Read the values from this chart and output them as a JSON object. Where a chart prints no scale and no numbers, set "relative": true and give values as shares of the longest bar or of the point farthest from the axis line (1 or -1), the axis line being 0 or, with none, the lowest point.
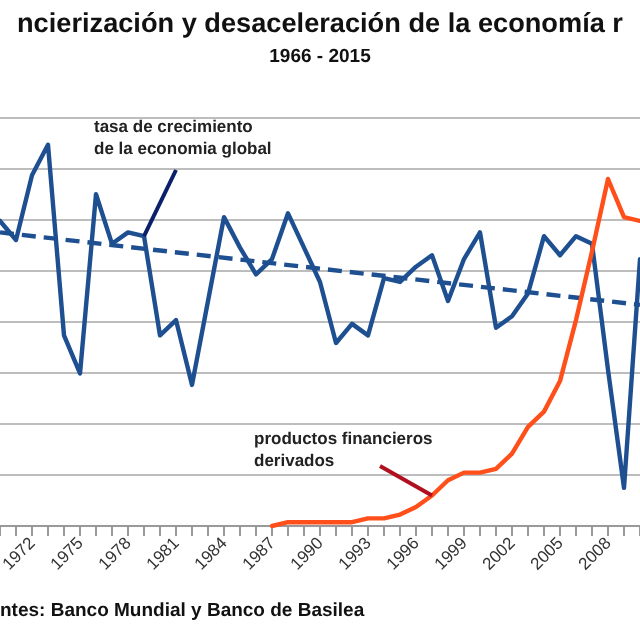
{
  "chart_data": {
    "type": "line",
    "title": "ncierización y desaceleración de la economía r",
    "subtitle": "1966 - 2015",
    "relative": true,
    "x": [
      1970,
      1971,
      1972,
      1973,
      1974,
      1975,
      1976,
      1977,
      1978,
      1979,
      1980,
      1981,
      1982,
      1983,
      1984,
      1985,
      1986,
      1987,
      1988,
      1989,
      1990,
      1991,
      1992,
      1993,
      1994,
      1995,
      1996,
      1997,
      1998,
      1999,
      2000,
      2001,
      2002,
      2003,
      2004,
      2005,
      2006,
      2007,
      2008,
      2009,
      2010
    ],
    "xlim": [
      1970,
      2010
    ],
    "xticks": [
      {
        "value": 1970,
        "label": null
      },
      {
        "value": 1971,
        "label": null
      },
      1972,
      {
        "value": 1973,
        "label": null
      },
      {
        "value": 1974,
        "label": null
      },
      1975,
      {
        "value": 1976,
        "label": null
      },
      {
        "value": 1977,
        "label": null
      },
      1978,
      {
        "value": 1979,
        "label": null
      },
      {
        "value": 1980,
        "label": null
      },
      1981,
      {
        "value": 1982,
        "label": null
      },
      {
        "value": 1983,
        "label": null
      },
      1984,
      {
        "value": 1985,
        "label": null
      },
      {
        "value": 1986,
        "label": null
      },
      1987,
      {
        "value": 1988,
        "label": null
      },
      {
        "value": 1989,
        "label": null
      },
      1990,
      {
        "value": 1991,
        "label": null
      },
      {
        "value": 1992,
        "label": null
      },
      1993,
      {
        "value": 1994,
        "label": null
      },
      {
        "value": 1995,
        "label": null
      },
      1996,
      {
        "value": 1997,
        "label": null
      },
      {
        "value": 1998,
        "label": null
      },
      1999,
      {
        "value": 2000,
        "label": null
      },
      {
        "value": 2001,
        "label": null
      },
      2002,
      {
        "value": 2003,
        "label": null
      },
      {
        "value": 2004,
        "label": null
      },
      2005,
      {
        "value": 2006,
        "label": null
      },
      {
        "value": 2007,
        "label": null
      },
      2008,
      {
        "value": 2009,
        "label": null
      },
      {
        "value": 2010,
        "label": null
      }
    ],
    "series": [
      {
        "color": "#1d4f91",
        "values": [
          0.8,
          0.75,
          0.92,
          1,
          0.5,
          0.4,
          0.87,
          0.74,
          0.77,
          0.76,
          0.5,
          0.54,
          0.37,
          0.59,
          0.81,
          0.73,
          0.66,
          0.7,
          0.82,
          0.73,
          0.64,
          0.48,
          0.53,
          0.5,
          0.65,
          0.64,
          0.68,
          0.71,
          0.59,
          0.7,
          0.77,
          0.52,
          0.55,
          0.61,
          0.76,
          0.71,
          0.76,
          0.74,
          0.41,
          0.1,
          0.7
        ]
      },
      {
        "color": "#1d4f91",
        "line_style": "dashed",
        "x": [
          1970,
          2010
        ],
        "values": [
          0.77,
          0.58
        ]
      },
      {
        "color": "#ff4f1a",
        "x": [
          1987,
          1988,
          1989,
          1990,
          1991,
          1992,
          1993,
          1994,
          1995,
          1996,
          1997,
          1998,
          1999,
          2000,
          2001,
          2002,
          2003,
          2004,
          2005,
          2006,
          2007,
          2008,
          2009,
          2010
        ],
        "values": [
          0,
          0.01,
          0.01,
          0.01,
          0.01,
          0.01,
          0.02,
          0.02,
          0.03,
          0.05,
          0.08,
          0.12,
          0.14,
          0.14,
          0.15,
          0.19,
          0.26,
          0.3,
          0.38,
          0.54,
          0.72,
          0.91,
          0.81,
          0.8
        ]
      }
    ],
    "annotations": [
      {
        "text": "tasa de crecimiento\nde la economia global",
        "x": 1979,
        "y": 0.76
      },
      {
        "text": "productos financieros\nderivados",
        "x": 1997,
        "y": 0.08
      },
      "ntes: Banco Mundial y Banco de Basilea"
    ],
    "grid": "y",
    "tick_labels": "x",
    "line_style": "solid",
    "marker": "none"
  }
}
